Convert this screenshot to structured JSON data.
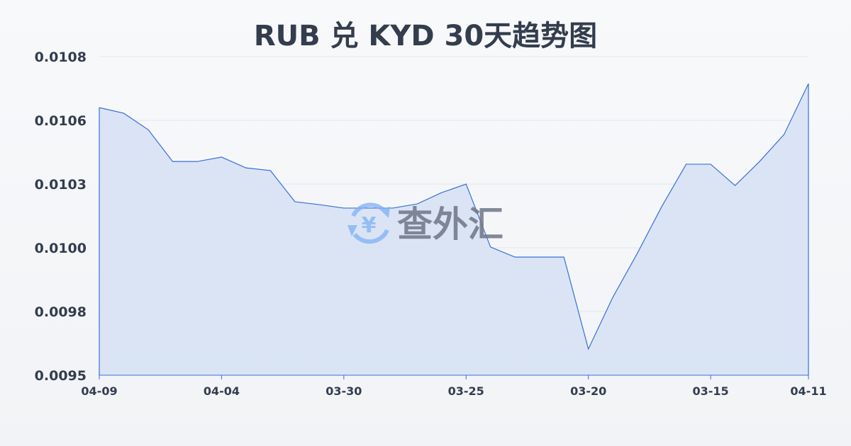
{
  "chart_data": {
    "type": "area",
    "title": "RUB 兑 KYD 30天趋势图",
    "xlabel": "",
    "ylabel": "",
    "x_tick_labels": [
      {
        "index": 0,
        "label": "04-09"
      },
      {
        "index": 5,
        "label": "04-04"
      },
      {
        "index": 10,
        "label": "03-30"
      },
      {
        "index": 15,
        "label": "03-25"
      },
      {
        "index": 20,
        "label": "03-20"
      },
      {
        "index": 25,
        "label": "03-15"
      },
      {
        "index": 29,
        "label": "04-11"
      }
    ],
    "y_ticks": [
      {
        "value": 0.0095,
        "label": "0.0095"
      },
      {
        "value": 0.00976,
        "label": "0.0098"
      },
      {
        "value": 0.01002,
        "label": "0.0100"
      },
      {
        "value": 0.01028,
        "label": "0.0103"
      },
      {
        "value": 0.01054,
        "label": "0.0106"
      },
      {
        "value": 0.0108,
        "label": "0.0108"
      }
    ],
    "ylim": [
      0.0095,
      0.0108
    ],
    "grid": true,
    "values": [
      0.010592,
      0.010569,
      0.010502,
      0.010372,
      0.010372,
      0.01039,
      0.010346,
      0.010335,
      0.010208,
      0.010196,
      0.010182,
      0.010182,
      0.010182,
      0.010199,
      0.010245,
      0.01028,
      0.010023,
      0.009982,
      0.009982,
      0.009982,
      0.009607,
      0.009818,
      0.009997,
      0.010188,
      0.010361,
      0.010361,
      0.010274,
      0.010372,
      0.010482,
      0.01069
    ],
    "colors": {
      "line": "#3a6fd8",
      "fill": "#d5e0f5",
      "grid": "#e3e6eb",
      "text": "#333d4d"
    }
  },
  "watermark": {
    "text": "查外汇",
    "icon": "yen-exchange-icon"
  }
}
